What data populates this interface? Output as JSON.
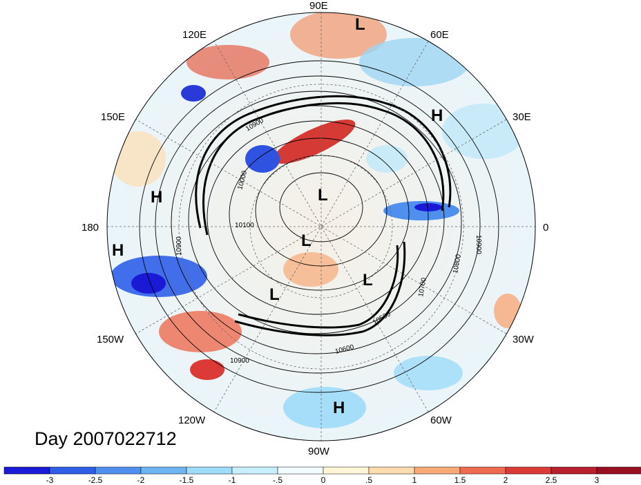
{
  "title": "Day 2007022712",
  "longitude_labels": [
    "90E",
    "60E",
    "30E",
    "0",
    "30W",
    "60W",
    "90W",
    "120W",
    "150W",
    "180",
    "150E",
    "120E"
  ],
  "pressure_systems": [
    "L",
    "H",
    "H",
    "H",
    "L",
    "L",
    "L",
    "L",
    "H"
  ],
  "contour_labels": [
    "10900",
    "10000",
    "10100",
    "10900",
    "10700",
    "10800",
    "10900",
    "10500",
    "10600",
    "10900"
  ],
  "colorbar": {
    "tick_labels": [
      "-3",
      "-2.5",
      "-2",
      "-1.5",
      "-1",
      "-.5",
      "0",
      ".5",
      "1",
      "1.5",
      "2",
      "2.5",
      "3"
    ],
    "colors": [
      "#1a1ad6",
      "#2f5fe8",
      "#4f8fee",
      "#6cb5f2",
      "#9edcfa",
      "#c8f0fc",
      "#f2fbff",
      "#fff6d8",
      "#fdddb0",
      "#f7a978",
      "#ee6b50",
      "#dc3a36",
      "#b8202e",
      "#9a0e22"
    ]
  }
}
